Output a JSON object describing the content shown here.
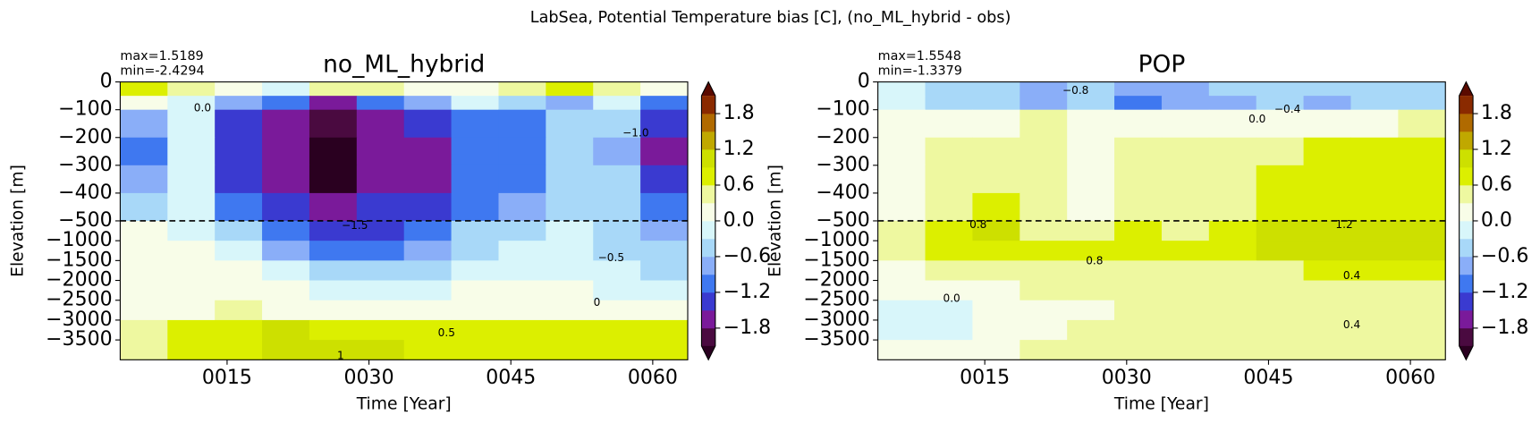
{
  "suptitle": "LabSea, Potential Temperature bias [C], (no_ML_hybrid - obs)",
  "chart_data": [
    {
      "type": "heatmap",
      "title": "no_ML_hybrid",
      "stats": [
        "max=1.5189",
        "min=-2.4294"
      ],
      "xlabel": "Time [Year]",
      "ylabel": "Elevation [m]",
      "xlim": [
        3.7,
        63.7
      ],
      "xticks": [
        {
          "value": 15,
          "label": "0015"
        },
        {
          "value": 30,
          "label": "0030"
        },
        {
          "value": 45,
          "label": "0045"
        },
        {
          "value": 60,
          "label": "0060"
        }
      ],
      "ylim": [
        -4000,
        0
      ],
      "ybreak": -500,
      "hline": -500,
      "yticks": [
        0,
        {
          "value": -100,
          "label": "−100"
        },
        {
          "value": -200,
          "label": "−200"
        },
        {
          "value": -300,
          "label": "−300"
        },
        {
          "value": -400,
          "label": "−400"
        },
        {
          "value": -500,
          "label": "−500"
        },
        {
          "value": -1000,
          "label": "−1000"
        },
        {
          "value": -1500,
          "label": "−1500"
        },
        {
          "value": -2000,
          "label": "−2000"
        },
        {
          "value": -2500,
          "label": "−2500"
        },
        {
          "value": -3000,
          "label": "−3000"
        },
        {
          "value": -3500,
          "label": "−3500"
        }
      ],
      "xbins": [
        3.7,
        8.7,
        13.7,
        18.7,
        23.7,
        28.7,
        33.7,
        38.7,
        43.7,
        48.7,
        53.7,
        58.7,
        63.7
      ],
      "ybins": [
        0,
        -50,
        -100,
        -200,
        -300,
        -400,
        -500,
        -1000,
        -1500,
        -2000,
        -2500,
        -3000,
        -3500,
        -4000
      ],
      "values": [
        [
          0.6,
          0.3,
          0.2,
          -0.3,
          0.3,
          0.4,
          0.0,
          0.2,
          0.3,
          0.6,
          0.5,
          0.2
        ],
        [
          0.1,
          -0.2,
          -0.8,
          -1.2,
          -1.6,
          -1.2,
          -0.8,
          -0.3,
          -0.5,
          -0.9,
          -0.3,
          -1.0
        ],
        [
          -0.8,
          -0.3,
          -1.3,
          -1.6,
          -2.0,
          -1.7,
          -1.3,
          -1.0,
          -1.0,
          -0.6,
          -0.5,
          -1.5
        ],
        [
          -1.0,
          -0.3,
          -1.4,
          -1.7,
          -2.3,
          -1.8,
          -1.7,
          -1.2,
          -1.1,
          -0.6,
          -0.7,
          -1.6
        ],
        [
          -0.8,
          -0.3,
          -1.3,
          -1.6,
          -2.2,
          -1.7,
          -1.6,
          -1.2,
          -1.0,
          -0.5,
          -0.6,
          -1.3
        ],
        [
          -0.4,
          -0.2,
          -1.1,
          -1.3,
          -1.7,
          -1.4,
          -1.3,
          -1.0,
          -0.9,
          -0.4,
          -0.5,
          -1.0
        ],
        [
          0.1,
          -0.2,
          -0.6,
          -1.1,
          -1.5,
          -1.4,
          -1.2,
          -0.6,
          -0.5,
          -0.3,
          -0.5,
          -0.9
        ],
        [
          0.2,
          0.0,
          -0.3,
          -0.8,
          -1.1,
          -1.0,
          -0.9,
          -0.4,
          -0.3,
          -0.3,
          -0.4,
          -0.6
        ],
        [
          0.2,
          0.1,
          0.0,
          -0.3,
          -0.6,
          -0.6,
          -0.5,
          -0.2,
          -0.2,
          -0.1,
          -0.2,
          -0.4
        ],
        [
          0.2,
          0.2,
          0.1,
          0.0,
          -0.1,
          -0.1,
          -0.1,
          0.0,
          0.0,
          0.0,
          -0.1,
          -0.1
        ],
        [
          0.2,
          0.2,
          0.3,
          0.2,
          0.1,
          0.1,
          0.1,
          0.1,
          0.1,
          0.2,
          0.1,
          0.1
        ],
        [
          0.4,
          0.6,
          0.8,
          0.9,
          0.8,
          0.7,
          0.6,
          0.6,
          0.6,
          0.6,
          0.6,
          0.6
        ],
        [
          0.5,
          0.6,
          0.8,
          0.9,
          1.0,
          0.9,
          0.8,
          0.8,
          0.8,
          0.8,
          0.7,
          0.7
        ]
      ],
      "clim": [
        -2.1,
        2.1
      ],
      "cticks": [
        1.8,
        1.2,
        0.6,
        {
          "value": 0,
          "label": "0.0"
        },
        {
          "value": -0.6,
          "label": "−0.6"
        },
        {
          "value": -1.2,
          "label": "−1.2"
        },
        {
          "value": -1.8,
          "label": "−1.8"
        }
      ],
      "colormap": [
        "#4a0a40",
        "#7a1a9a",
        "#3a3ad0",
        "#3f78f0",
        "#8aaef8",
        "#a8d8f8",
        "#d8f6fa",
        "#f8fde8",
        "#eef8a0",
        "#dcef00",
        "#cde000",
        "#c0a800",
        "#b06a00",
        "#8a2a00"
      ],
      "extend_colors": [
        "#2a0020",
        "#5a0a00"
      ],
      "contour_labels": [
        {
          "x": 38.2,
          "y": -3330,
          "value": 0.5
        },
        {
          "x": 54.1,
          "y": -2560,
          "value": 0
        },
        {
          "x": 27,
          "y": -3900,
          "value": 1
        },
        {
          "x": 28.5,
          "y": -620,
          "value": -1.5,
          "label": "−1.5"
        },
        {
          "x": 55.6,
          "y": -1440,
          "value": -0.5,
          "label": "−0.5"
        },
        {
          "x": 12.4,
          "y": -95,
          "value": 0,
          "label": "0.0"
        },
        {
          "x": 58.2,
          "y": -185,
          "value": -1,
          "label": "−1.0"
        }
      ]
    },
    {
      "type": "heatmap",
      "title": "POP",
      "stats": [
        "max=1.5548",
        "min=-1.3379"
      ],
      "xlabel": "Time [Year]",
      "ylabel": "Elevation [m]",
      "xlim": [
        3.7,
        63.7
      ],
      "xticks": [
        {
          "value": 15,
          "label": "0015"
        },
        {
          "value": 30,
          "label": "0030"
        },
        {
          "value": 45,
          "label": "0045"
        },
        {
          "value": 60,
          "label": "0060"
        }
      ],
      "ylim": [
        -4000,
        0
      ],
      "ybreak": -500,
      "hline": -500,
      "yticks": [
        0,
        {
          "value": -100,
          "label": "−100"
        },
        {
          "value": -200,
          "label": "−200"
        },
        {
          "value": -300,
          "label": "−300"
        },
        {
          "value": -400,
          "label": "−400"
        },
        {
          "value": -500,
          "label": "−500"
        },
        {
          "value": -1000,
          "label": "−1000"
        },
        {
          "value": -1500,
          "label": "−1500"
        },
        {
          "value": -2000,
          "label": "−2000"
        },
        {
          "value": -2500,
          "label": "−2500"
        },
        {
          "value": -3000,
          "label": "−3000"
        },
        {
          "value": -3500,
          "label": "−3500"
        }
      ],
      "xbins": [
        3.7,
        8.7,
        13.7,
        18.7,
        23.7,
        28.7,
        33.7,
        38.7,
        43.7,
        48.7,
        53.7,
        58.7,
        63.7
      ],
      "ybins": [
        0,
        -50,
        -100,
        -200,
        -300,
        -400,
        -500,
        -1000,
        -1500,
        -2000,
        -2500,
        -3000,
        -3500,
        -4000
      ],
      "values": [
        [
          -0.3,
          -0.4,
          -0.5,
          -0.7,
          -0.6,
          -0.9,
          -0.8,
          -0.6,
          -0.5,
          -0.5,
          -0.4,
          -0.4
        ],
        [
          -0.2,
          -0.4,
          -0.6,
          -0.9,
          -0.6,
          -1.0,
          -0.9,
          -0.7,
          -0.6,
          -0.7,
          -0.6,
          -0.5
        ],
        [
          0.0,
          0.1,
          0.2,
          0.3,
          0.1,
          0.2,
          0.2,
          0.1,
          0.1,
          0.0,
          0.2,
          0.3
        ],
        [
          0.2,
          0.4,
          0.4,
          0.4,
          0.2,
          0.4,
          0.4,
          0.3,
          0.5,
          0.6,
          0.6,
          0.6
        ],
        [
          0.2,
          0.4,
          0.5,
          0.4,
          0.2,
          0.5,
          0.4,
          0.4,
          0.7,
          0.8,
          0.7,
          0.8
        ],
        [
          0.2,
          0.5,
          0.6,
          0.4,
          0.2,
          0.5,
          0.4,
          0.5,
          0.8,
          0.8,
          0.7,
          0.8
        ],
        [
          0.4,
          0.8,
          0.9,
          0.5,
          0.3,
          0.6,
          0.5,
          0.7,
          1.1,
          1.2,
          1.2,
          1.1
        ],
        [
          0.3,
          0.7,
          0.8,
          0.8,
          0.6,
          0.8,
          0.6,
          0.6,
          0.9,
          1.0,
          1.2,
          1.1
        ],
        [
          0.2,
          0.4,
          0.5,
          0.5,
          0.5,
          0.5,
          0.5,
          0.5,
          0.5,
          0.6,
          0.6,
          0.6
        ],
        [
          0.0,
          0.2,
          0.2,
          0.3,
          0.3,
          0.3,
          0.3,
          0.3,
          0.3,
          0.3,
          0.3,
          0.3
        ],
        [
          -0.2,
          -0.1,
          0.0,
          0.1,
          0.2,
          0.3,
          0.3,
          0.3,
          0.3,
          0.3,
          0.3,
          0.3
        ],
        [
          -0.2,
          -0.1,
          0.0,
          0.2,
          0.3,
          0.3,
          0.4,
          0.4,
          0.4,
          0.4,
          0.4,
          0.4
        ],
        [
          0.0,
          0.1,
          0.2,
          0.3,
          0.4,
          0.4,
          0.4,
          0.4,
          0.4,
          0.5,
          0.5,
          0.5
        ]
      ],
      "clim": [
        -2.1,
        2.1
      ],
      "cticks": [
        1.8,
        1.2,
        0.6,
        {
          "value": 0,
          "label": "0.0"
        },
        {
          "value": -0.6,
          "label": "−0.6"
        },
        {
          "value": -1.2,
          "label": "−1.2"
        },
        {
          "value": -1.8,
          "label": "−1.8"
        }
      ],
      "colormap": [
        "#4a0a40",
        "#7a1a9a",
        "#3a3ad0",
        "#3f78f0",
        "#8aaef8",
        "#a8d8f8",
        "#d8f6fa",
        "#f8fde8",
        "#eef8a0",
        "#dcef00",
        "#cde000",
        "#c0a800",
        "#b06a00",
        "#8a2a00"
      ],
      "extend_colors": [
        "#2a0020",
        "#5a0a00"
      ],
      "contour_labels": [
        {
          "x": 24.6,
          "y": -32,
          "value": -0.8,
          "label": "−0.8"
        },
        {
          "x": 47,
          "y": -100,
          "value": -0.4,
          "label": "−0.4"
        },
        {
          "x": 43.8,
          "y": -135,
          "value": 0,
          "label": "0.0"
        },
        {
          "x": 26.6,
          "y": -1520,
          "value": 0.8
        },
        {
          "x": 53.8,
          "y": -1890,
          "value": 0.4
        },
        {
          "x": 53.8,
          "y": -3130,
          "value": 0.4
        },
        {
          "x": 11.5,
          "y": -2460,
          "value": 0,
          "label": "0.0"
        },
        {
          "x": 53,
          "y": -600,
          "value": 1.2
        },
        {
          "x": 14.3,
          "y": -600,
          "value": 0.8
        }
      ]
    }
  ]
}
